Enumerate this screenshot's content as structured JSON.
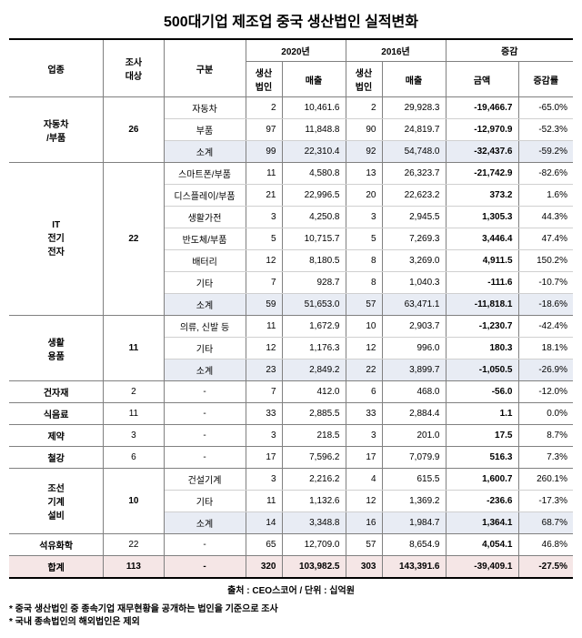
{
  "title": "500대기업 제조업 중국 생산법인 실적변화",
  "source": "출처 : CEO스코어 / 단위 : 십억원",
  "footnotes": [
    "* 중국 생산법인 중 종속기업 재무현황을 공개하는 법인을 기준으로 조사",
    "* 국내 종속법인의 해외법인은 제외"
  ],
  "columns": {
    "category": "업종",
    "targets": "조사\n대상",
    "division": "구분",
    "y2020": "2020년",
    "y2016": "2016년",
    "change": "증감",
    "prodCorp": "생산\n법인",
    "sales": "매출",
    "amount": "금액",
    "rate": "증감률"
  },
  "groups": [
    {
      "category": "자동차\n/부품",
      "targets": "26",
      "rows": [
        {
          "label": "자동차",
          "c2020": "2",
          "s2020": "10,461.6",
          "c2016": "2",
          "s2016": "29,928.3",
          "amt": "-19,466.7",
          "rate": "-65.0%"
        },
        {
          "label": "부품",
          "c2020": "97",
          "s2020": "11,848.8",
          "c2016": "90",
          "s2016": "24,819.7",
          "amt": "-12,970.9",
          "rate": "-52.3%"
        }
      ],
      "subtotal": {
        "label": "소계",
        "c2020": "99",
        "s2020": "22,310.4",
        "c2016": "92",
        "s2016": "54,748.0",
        "amt": "-32,437.6",
        "rate": "-59.2%"
      }
    },
    {
      "category": "IT\n전기\n전자",
      "targets": "22",
      "rows": [
        {
          "label": "스마트폰/부품",
          "c2020": "11",
          "s2020": "4,580.8",
          "c2016": "13",
          "s2016": "26,323.7",
          "amt": "-21,742.9",
          "rate": "-82.6%"
        },
        {
          "label": "디스플레이/부품",
          "c2020": "21",
          "s2020": "22,996.5",
          "c2016": "20",
          "s2016": "22,623.2",
          "amt": "373.2",
          "rate": "1.6%"
        },
        {
          "label": "생활가전",
          "c2020": "3",
          "s2020": "4,250.8",
          "c2016": "3",
          "s2016": "2,945.5",
          "amt": "1,305.3",
          "rate": "44.3%"
        },
        {
          "label": "반도체/부품",
          "c2020": "5",
          "s2020": "10,715.7",
          "c2016": "5",
          "s2016": "7,269.3",
          "amt": "3,446.4",
          "rate": "47.4%"
        },
        {
          "label": "배터리",
          "c2020": "12",
          "s2020": "8,180.5",
          "c2016": "8",
          "s2016": "3,269.0",
          "amt": "4,911.5",
          "rate": "150.2%"
        },
        {
          "label": "기타",
          "c2020": "7",
          "s2020": "928.7",
          "c2016": "8",
          "s2016": "1,040.3",
          "amt": "-111.6",
          "rate": "-10.7%"
        }
      ],
      "subtotal": {
        "label": "소계",
        "c2020": "59",
        "s2020": "51,653.0",
        "c2016": "57",
        "s2016": "63,471.1",
        "amt": "-11,818.1",
        "rate": "-18.6%"
      }
    },
    {
      "category": "생활\n용품",
      "targets": "11",
      "rows": [
        {
          "label": "의류, 신발 등",
          "c2020": "11",
          "s2020": "1,672.9",
          "c2016": "10",
          "s2016": "2,903.7",
          "amt": "-1,230.7",
          "rate": "-42.4%"
        },
        {
          "label": "기타",
          "c2020": "12",
          "s2020": "1,176.3",
          "c2016": "12",
          "s2016": "996.0",
          "amt": "180.3",
          "rate": "18.1%"
        }
      ],
      "subtotal": {
        "label": "소계",
        "c2020": "23",
        "s2020": "2,849.2",
        "c2016": "22",
        "s2016": "3,899.7",
        "amt": "-1,050.5",
        "rate": "-26.9%"
      }
    }
  ],
  "simples": [
    {
      "category": "건자재",
      "targets": "2",
      "label": "-",
      "c2020": "7",
      "s2020": "412.0",
      "c2016": "6",
      "s2016": "468.0",
      "amt": "-56.0",
      "rate": "-12.0%"
    },
    {
      "category": "식음료",
      "targets": "11",
      "label": "-",
      "c2020": "33",
      "s2020": "2,885.5",
      "c2016": "33",
      "s2016": "2,884.4",
      "amt": "1.1",
      "rate": "0.0%"
    },
    {
      "category": "제약",
      "targets": "3",
      "label": "-",
      "c2020": "3",
      "s2020": "218.5",
      "c2016": "3",
      "s2016": "201.0",
      "amt": "17.5",
      "rate": "8.7%"
    },
    {
      "category": "철강",
      "targets": "6",
      "label": "-",
      "c2020": "17",
      "s2020": "7,596.2",
      "c2016": "17",
      "s2016": "7,079.9",
      "amt": "516.3",
      "rate": "7.3%"
    }
  ],
  "groups2": [
    {
      "category": "조선\n기계\n설비",
      "targets": "10",
      "rows": [
        {
          "label": "건설기계",
          "c2020": "3",
          "s2020": "2,216.2",
          "c2016": "4",
          "s2016": "615.5",
          "amt": "1,600.7",
          "rate": "260.1%"
        },
        {
          "label": "기타",
          "c2020": "11",
          "s2020": "1,132.6",
          "c2016": "12",
          "s2016": "1,369.2",
          "amt": "-236.6",
          "rate": "-17.3%"
        }
      ],
      "subtotal": {
        "label": "소계",
        "c2020": "14",
        "s2020": "3,348.8",
        "c2016": "16",
        "s2016": "1,984.7",
        "amt": "1,364.1",
        "rate": "68.7%"
      }
    }
  ],
  "simples2": [
    {
      "category": "석유화학",
      "targets": "22",
      "label": "-",
      "c2020": "65",
      "s2020": "12,709.0",
      "c2016": "57",
      "s2016": "8,654.9",
      "amt": "4,054.1",
      "rate": "46.8%"
    }
  ],
  "total": {
    "category": "합계",
    "targets": "113",
    "label": "-",
    "c2020": "320",
    "s2020": "103,982.5",
    "c2016": "303",
    "s2016": "143,391.6",
    "amt": "-39,409.1",
    "rate": "-27.5%"
  }
}
